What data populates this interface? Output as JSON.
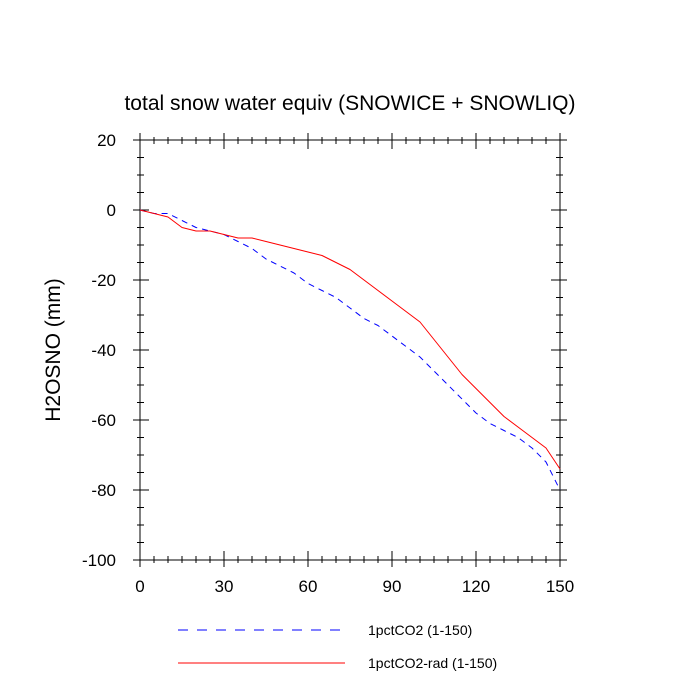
{
  "chart_data": {
    "type": "line",
    "title": "total snow water equiv (SNOWICE + SNOWLIQ)",
    "ylabel": "H2OSNO  (mm)",
    "xlabel": "",
    "xlim": [
      0,
      150
    ],
    "ylim": [
      -100,
      20
    ],
    "xticks": [
      0,
      30,
      60,
      90,
      120,
      150
    ],
    "yticks": [
      20,
      0,
      -20,
      -40,
      -60,
      -80,
      -100
    ],
    "xtick_labels": [
      "0",
      "30",
      "60",
      "90",
      "120",
      "150"
    ],
    "ytick_labels": [
      "20",
      "0",
      "-20",
      "-40",
      "-60",
      "-80",
      "-100"
    ],
    "grid": false,
    "legend_position": "bottom",
    "series": [
      {
        "name": "1pctCO2 (1-150)",
        "color": "#0000ff",
        "style": "dashed",
        "x": [
          0,
          5,
          10,
          15,
          20,
          25,
          30,
          35,
          40,
          45,
          50,
          55,
          60,
          65,
          70,
          75,
          80,
          85,
          90,
          95,
          100,
          105,
          110,
          115,
          120,
          125,
          130,
          135,
          140,
          145,
          150
        ],
        "y": [
          0,
          -1,
          -1,
          -3,
          -5,
          -6,
          -7,
          -9,
          -11,
          -14,
          -16,
          -18,
          -21,
          -23,
          -25,
          -28,
          -31,
          -33,
          -36,
          -39,
          -42,
          -46,
          -50,
          -54,
          -58,
          -61,
          -63,
          -65,
          -68,
          -72,
          -80
        ]
      },
      {
        "name": "1pctCO2-rad (1-150)",
        "color": "#ff0000",
        "style": "solid",
        "x": [
          0,
          5,
          10,
          15,
          20,
          25,
          30,
          35,
          40,
          45,
          50,
          55,
          60,
          65,
          70,
          75,
          80,
          85,
          90,
          95,
          100,
          105,
          110,
          115,
          120,
          125,
          130,
          135,
          140,
          145,
          150
        ],
        "y": [
          0,
          -1,
          -2,
          -5,
          -6,
          -6,
          -7,
          -8,
          -8,
          -9,
          -10,
          -11,
          -12,
          -13,
          -15,
          -17,
          -20,
          -23,
          -26,
          -29,
          -32,
          -37,
          -42,
          -47,
          -51,
          -55,
          -59,
          -62,
          -65,
          -68,
          -74
        ]
      }
    ]
  }
}
